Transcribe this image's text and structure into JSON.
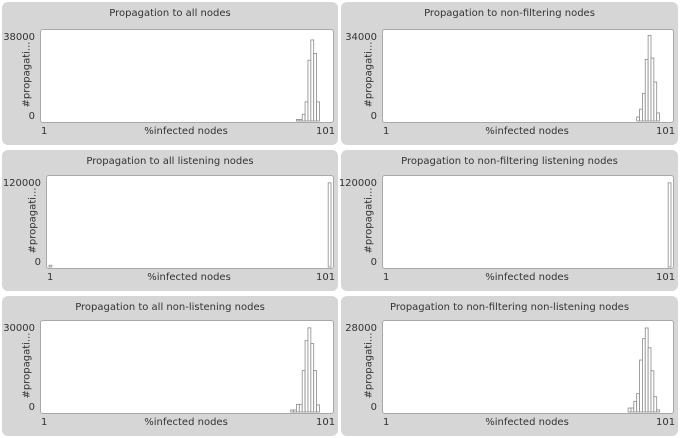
{
  "chart_data": [
    {
      "type": "bar",
      "title": "Propagation to all nodes",
      "xlabel": "%infected nodes",
      "ylabel": "#propagati...",
      "xlim": [
        1,
        101
      ],
      "ylim": [
        0,
        38000
      ],
      "x_tick_labels": [
        "1",
        "101"
      ],
      "y_tick_labels": [
        "0",
        "38000"
      ],
      "bin_start": 89,
      "values": [
        700,
        700,
        3000,
        8500,
        27000,
        36000,
        30000,
        8500
      ]
    },
    {
      "type": "bar",
      "title": "Propagation to non-filtering nodes",
      "xlabel": "%infected nodes",
      "ylabel": "#propagati...",
      "xlim": [
        1,
        101
      ],
      "ylim": [
        0,
        34000
      ],
      "x_tick_labels": [
        "1",
        "101"
      ],
      "y_tick_labels": [
        "0",
        "34000"
      ],
      "bin_start": 89,
      "values": [
        1600,
        4700,
        11000,
        24500,
        34000,
        25000,
        15500,
        3200
      ]
    },
    {
      "type": "bar",
      "title": "Propagation to all listening nodes",
      "xlabel": "%infected nodes",
      "ylabel": "#propagati...",
      "xlim": [
        1,
        101
      ],
      "ylim": [
        0,
        120000
      ],
      "x_tick_labels": [
        "1",
        "101"
      ],
      "y_tick_labels": [
        "0",
        "120000"
      ],
      "bins": [
        {
          "x": 1,
          "value": 2500
        },
        {
          "x": 100,
          "value": 118000
        }
      ]
    },
    {
      "type": "bar",
      "title": "Propagation to non-filtering listening nodes",
      "xlabel": "%infected nodes",
      "ylabel": "#propagati...",
      "xlim": [
        1,
        101
      ],
      "ylim": [
        0,
        120000
      ],
      "x_tick_labels": [
        "1",
        "101"
      ],
      "y_tick_labels": [
        "0",
        "120000"
      ],
      "bins": [
        {
          "x": 100,
          "value": 118000
        }
      ]
    },
    {
      "type": "bar",
      "title": "Propagation to all non-listening nodes",
      "xlabel": "%infected nodes",
      "ylabel": "#propagati...",
      "xlim": [
        1,
        101
      ],
      "ylim": [
        0,
        30000
      ],
      "x_tick_labels": [
        "1",
        "101"
      ],
      "y_tick_labels": [
        "0",
        "30000"
      ],
      "bin_start": 87,
      "values": [
        700,
        700,
        2700,
        2700,
        14500,
        25000,
        29500,
        24000,
        14500,
        2500
      ]
    },
    {
      "type": "bar",
      "title": "Propagation to non-filtering non-listening nodes",
      "xlabel": "%infected nodes",
      "ylabel": "#propagati...",
      "xlim": [
        1,
        101
      ],
      "ylim": [
        0,
        28000
      ],
      "x_tick_labels": [
        "1",
        "101"
      ],
      "y_tick_labels": [
        "0",
        "28000"
      ],
      "bin_start": 86,
      "values": [
        1300,
        1300,
        3500,
        6000,
        17000,
        24000,
        27500,
        21000,
        13500,
        5000,
        700
      ]
    }
  ]
}
